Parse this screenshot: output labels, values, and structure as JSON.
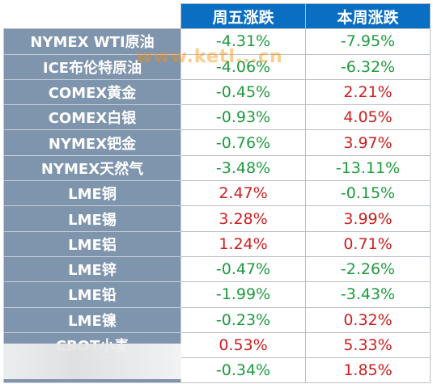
{
  "header": {
    "corner": "",
    "col1": "周五涨跌",
    "col2": "本周涨跌"
  },
  "rows": [
    {
      "name": "NYMEX WTI原油",
      "friday": "-4.31%",
      "week": "-7.95%"
    },
    {
      "name": "ICE布伦特原油",
      "friday": "-4.06%",
      "week": "-6.32%"
    },
    {
      "name": "COMEX黄金",
      "friday": "-0.45%",
      "week": "2.21%"
    },
    {
      "name": "COMEX白银",
      "friday": "-0.93%",
      "week": "4.05%"
    },
    {
      "name": "NYMEX钯金",
      "friday": "-0.76%",
      "week": "3.97%"
    },
    {
      "name": "NYMEX天然气",
      "friday": "-3.48%",
      "week": "-13.11%"
    },
    {
      "name": "LME铜",
      "friday": "2.47%",
      "week": "-0.15%"
    },
    {
      "name": "LME锡",
      "friday": "3.28%",
      "week": "3.99%"
    },
    {
      "name": "LME铝",
      "friday": "1.24%",
      "week": "0.71%"
    },
    {
      "name": "LME锌",
      "friday": "-0.47%",
      "week": "-2.26%"
    },
    {
      "name": "LME铅",
      "friday": "-1.99%",
      "week": "-3.43%"
    },
    {
      "name": "LME镍",
      "friday": "-0.23%",
      "week": "0.32%"
    },
    {
      "name": "CBOT小麦",
      "friday": "0.53%",
      "week": "5.33%"
    },
    {
      "name": "",
      "friday": "-0.34%",
      "week": "1.85%"
    }
  ],
  "colors": {
    "header_bg": "#0a6fc2",
    "name_bg": "#7f95ad",
    "negative": "#1f9a3e",
    "positive": "#cc1f1f"
  },
  "watermark": "www.ketl...cn"
}
